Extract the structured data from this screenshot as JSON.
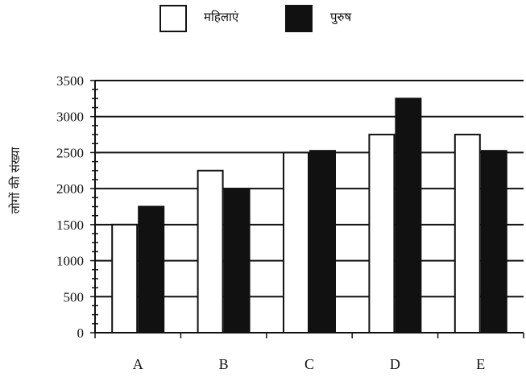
{
  "chart_data": {
    "type": "bar",
    "title": "",
    "xlabel": "",
    "ylabel": "लोगों की संख्या",
    "categories": [
      "A",
      "B",
      "C",
      "D",
      "E"
    ],
    "series": [
      {
        "name": "महिलाएं",
        "values": [
          1500,
          2250,
          2500,
          2750,
          2750
        ],
        "fill": "#ffffff"
      },
      {
        "name": "पुरुष",
        "values": [
          1750,
          2000,
          2525,
          3250,
          2525
        ],
        "fill": "#111111"
      }
    ],
    "ylim": [
      0,
      3500
    ],
    "yticks": [
      0,
      500,
      1000,
      1500,
      2000,
      2500,
      3000,
      3500
    ],
    "grid": true,
    "legend": "top-center"
  }
}
